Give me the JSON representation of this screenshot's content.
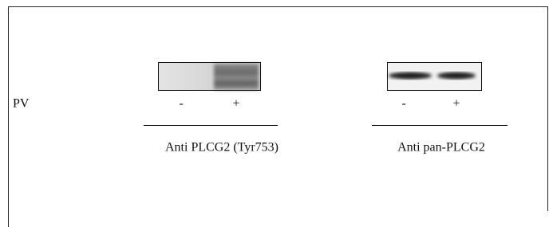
{
  "row_label": "PV",
  "panels": [
    {
      "lanes": [
        "-",
        "+"
      ],
      "caption": "Anti PLCG2 (Tyr753)"
    },
    {
      "lanes": [
        "-",
        "+"
      ],
      "caption": "Anti pan-PLCG2"
    }
  ]
}
